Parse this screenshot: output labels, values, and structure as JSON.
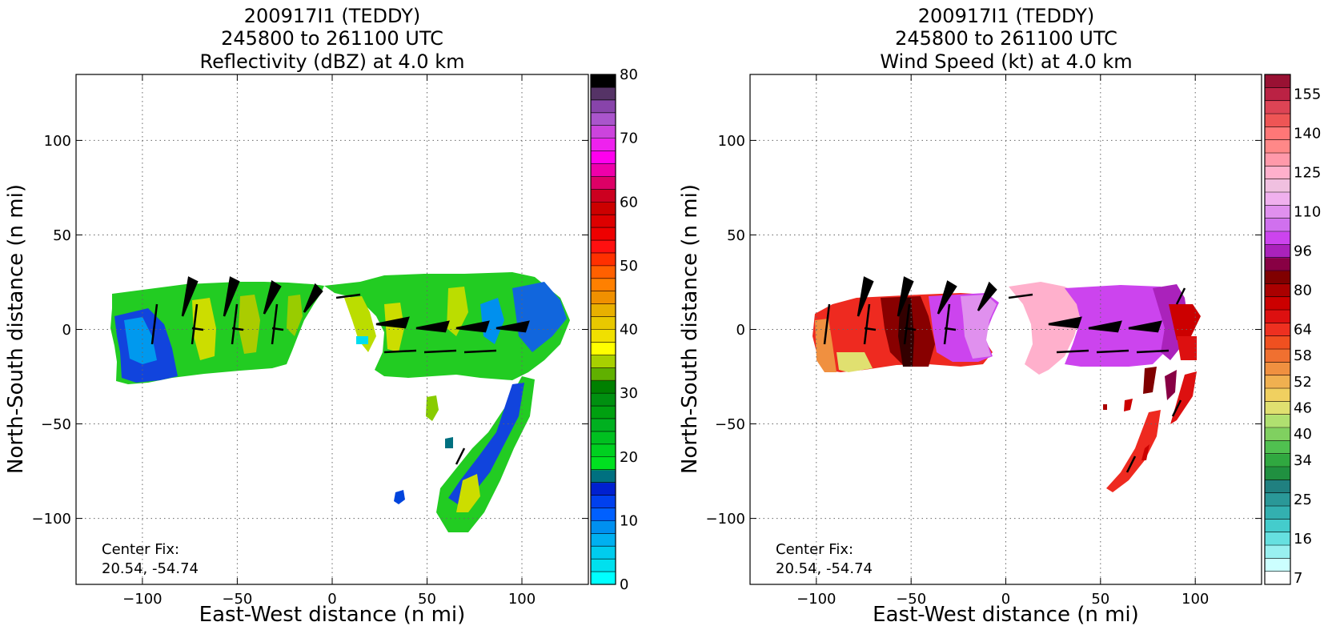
{
  "chart_data": [
    {
      "type": "heatmap",
      "title_lines": [
        "200917I1 (TEDDY)",
        "245800 to 261100 UTC",
        "Reflectivity (dBZ) at 4.0 km"
      ],
      "xlabel": "East-West distance (n mi)",
      "ylabel": "North-South distance (n mi)",
      "xlim": [
        -135,
        135
      ],
      "ylim": [
        -135,
        135
      ],
      "xticks": [
        -100,
        -50,
        0,
        50,
        100
      ],
      "yticks": [
        -100,
        -50,
        0,
        50,
        100
      ],
      "xtick_labels": [
        "−100",
        "−50",
        "0",
        "50",
        "100"
      ],
      "ytick_labels": [
        "−100",
        "−50",
        "0",
        "50",
        "100"
      ],
      "grid": true,
      "annotation_lines": [
        "Center Fix:",
        "20.54, -54.74"
      ],
      "colorbar": {
        "min": 0,
        "max": 80,
        "tick_values": [
          0,
          10,
          20,
          30,
          40,
          50,
          60,
          70,
          80
        ],
        "tick_labels": [
          "0",
          "10",
          "20",
          "30",
          "40",
          "50",
          "60",
          "70",
          "80"
        ],
        "colors": [
          "#00ffff",
          "#00e0ee",
          "#00ccee",
          "#00b0f0",
          "#0090f0",
          "#0060ff",
          "#0040ee",
          "#0020d0",
          "#007080",
          "#00e020",
          "#00d020",
          "#00c020",
          "#00b020",
          "#00a010",
          "#009010",
          "#008000",
          "#60b000",
          "#a8d000",
          "#ffff00",
          "#f0e000",
          "#e8c800",
          "#e8b000",
          "#f09000",
          "#ff8000",
          "#ff6000",
          "#ff3000",
          "#ff1010",
          "#ee0000",
          "#dd0000",
          "#cc0000",
          "#cc0020",
          "#dd0066",
          "#ee00aa",
          "#ff00ee",
          "#ee22ee",
          "#cc44dd",
          "#aa55cc",
          "#8844aa",
          "#553366",
          "#000000"
        ]
      }
    },
    {
      "type": "heatmap",
      "title_lines": [
        "200917I1 (TEDDY)",
        "245800 to 261100 UTC",
        "Wind Speed (kt) at 4.0 km"
      ],
      "xlabel": "East-West distance (n mi)",
      "ylabel": "North-South distance (n mi)",
      "xlim": [
        -135,
        135
      ],
      "ylim": [
        -135,
        135
      ],
      "xticks": [
        -100,
        -50,
        0,
        50,
        100
      ],
      "yticks": [
        -100,
        -50,
        0,
        50,
        100
      ],
      "xtick_labels": [
        "−100",
        "−50",
        "0",
        "50",
        "100"
      ],
      "ytick_labels": [
        "−100",
        "−50",
        "0",
        "50",
        "100"
      ],
      "grid": true,
      "annotation_lines": [
        "Center Fix:",
        "20.54, -54.74"
      ],
      "colorbar": {
        "tick_labels": [
          "7",
          "16",
          "25",
          "34",
          "40",
          "46",
          "52",
          "58",
          "64",
          "80",
          "96",
          "110",
          "125",
          "140",
          "155"
        ],
        "tick_band_index": [
          0,
          3,
          6,
          9,
          11,
          13,
          15,
          17,
          19,
          22,
          25,
          28,
          31,
          34,
          37
        ],
        "colors": [
          "#ffffff",
          "#ccffff",
          "#99f0f0",
          "#66e0e0",
          "#44cccc",
          "#33b0b0",
          "#2a9898",
          "#208080",
          "#209040",
          "#30a840",
          "#50c050",
          "#80d060",
          "#b0e070",
          "#e0e070",
          "#f0d060",
          "#f0b050",
          "#f09040",
          "#f07030",
          "#f05020",
          "#ee3020",
          "#dd1010",
          "#cc0000",
          "#aa0000",
          "#800000",
          "#880044",
          "#aa22bb",
          "#cc44ee",
          "#d070ee",
          "#e090ee",
          "#f0b0ee",
          "#f0c0e0",
          "#ffb0cc",
          "#ff99aa",
          "#ff8888",
          "#ff7777",
          "#ee5555",
          "#dd4455",
          "#bb2244",
          "#991133"
        ]
      }
    }
  ]
}
